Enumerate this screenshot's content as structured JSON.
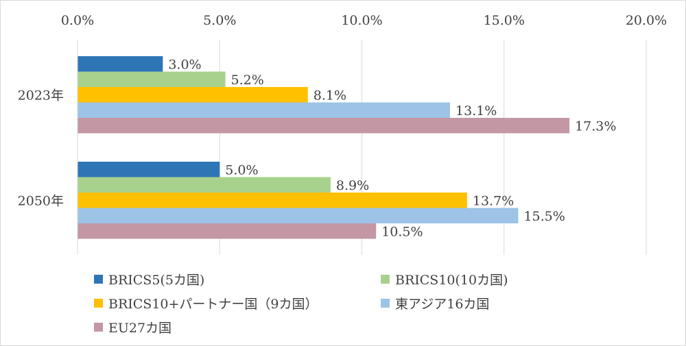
{
  "chart_data": {
    "type": "bar",
    "orientation": "horizontal",
    "title": "",
    "xlabel": "",
    "ylabel": "",
    "xlim": [
      0,
      20
    ],
    "x_ticks": [
      "0.0%",
      "5.0%",
      "10.0%",
      "15.0%",
      "20.0%"
    ],
    "x_tick_values": [
      0,
      5,
      10,
      15,
      20
    ],
    "grid": true,
    "legend_position": "bottom",
    "categories": [
      "2023年",
      "2050年"
    ],
    "series": [
      {
        "name": "BRICS5(5カ国)",
        "color": "#2e75b6",
        "values": [
          3.0,
          5.0
        ],
        "labels": [
          "3.0%",
          "5.0%"
        ]
      },
      {
        "name": "BRICS10(10カ国)",
        "color": "#a9d18e",
        "values": [
          5.2,
          8.9
        ],
        "labels": [
          "5.2%",
          "8.9%"
        ]
      },
      {
        "name": "BRICS10+パートナー国（9カ国）",
        "color": "#ffc000",
        "values": [
          8.1,
          13.7
        ],
        "labels": [
          "8.1%",
          "13.7%"
        ]
      },
      {
        "name": "東アジア16カ国",
        "color": "#9dc3e6",
        "values": [
          13.1,
          15.5
        ],
        "labels": [
          "13.1%",
          "15.5%"
        ]
      },
      {
        "name": "EU27カ国",
        "color": "#c497a4",
        "values": [
          17.3,
          10.5
        ],
        "labels": [
          "17.3%",
          "10.5%"
        ]
      }
    ]
  }
}
